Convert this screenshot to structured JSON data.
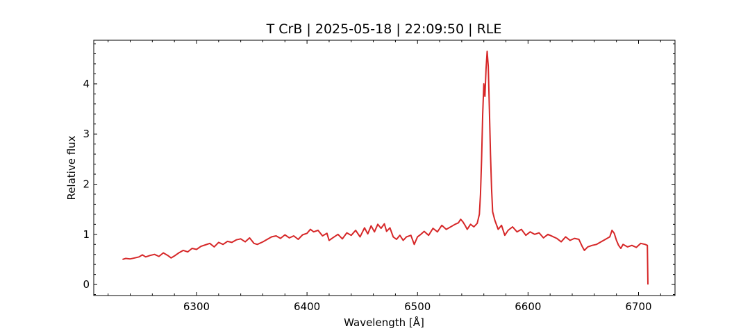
{
  "chart_data": {
    "type": "line",
    "title": "T CrB | 2025-05-18 | 22:09:50 | RLE",
    "xlabel": "Wavelength [Å]",
    "ylabel": "Relative flux",
    "xlim": [
      6207,
      6733
    ],
    "ylim": [
      -0.22,
      4.87
    ],
    "xticks": [
      6300,
      6400,
      6500,
      6600,
      6700
    ],
    "yticks": [
      0,
      1,
      2,
      3,
      4
    ],
    "grid": false,
    "series": [
      {
        "color": "#d62728",
        "points": [
          [
            6233,
            0.5
          ],
          [
            6236,
            0.52
          ],
          [
            6240,
            0.51
          ],
          [
            6244,
            0.53
          ],
          [
            6248,
            0.55
          ],
          [
            6251,
            0.59
          ],
          [
            6254,
            0.55
          ],
          [
            6258,
            0.58
          ],
          [
            6262,
            0.6
          ],
          [
            6266,
            0.56
          ],
          [
            6270,
            0.63
          ],
          [
            6274,
            0.58
          ],
          [
            6277,
            0.53
          ],
          [
            6280,
            0.57
          ],
          [
            6284,
            0.63
          ],
          [
            6288,
            0.68
          ],
          [
            6292,
            0.65
          ],
          [
            6296,
            0.72
          ],
          [
            6300,
            0.7
          ],
          [
            6304,
            0.76
          ],
          [
            6308,
            0.79
          ],
          [
            6312,
            0.82
          ],
          [
            6316,
            0.75
          ],
          [
            6320,
            0.84
          ],
          [
            6324,
            0.8
          ],
          [
            6328,
            0.86
          ],
          [
            6332,
            0.84
          ],
          [
            6336,
            0.89
          ],
          [
            6340,
            0.91
          ],
          [
            6344,
            0.85
          ],
          [
            6348,
            0.93
          ],
          [
            6352,
            0.82
          ],
          [
            6355,
            0.8
          ],
          [
            6360,
            0.85
          ],
          [
            6364,
            0.9
          ],
          [
            6368,
            0.95
          ],
          [
            6372,
            0.97
          ],
          [
            6376,
            0.92
          ],
          [
            6380,
            0.99
          ],
          [
            6384,
            0.93
          ],
          [
            6388,
            0.97
          ],
          [
            6392,
            0.9
          ],
          [
            6396,
            0.99
          ],
          [
            6400,
            1.02
          ],
          [
            6403,
            1.1
          ],
          [
            6406,
            1.05
          ],
          [
            6410,
            1.08
          ],
          [
            6414,
            0.97
          ],
          [
            6418,
            1.02
          ],
          [
            6420,
            0.88
          ],
          [
            6424,
            0.94
          ],
          [
            6428,
            1.0
          ],
          [
            6432,
            0.91
          ],
          [
            6436,
            1.03
          ],
          [
            6440,
            0.98
          ],
          [
            6444,
            1.08
          ],
          [
            6448,
            0.95
          ],
          [
            6452,
            1.13
          ],
          [
            6455,
            1.01
          ],
          [
            6458,
            1.17
          ],
          [
            6461,
            1.05
          ],
          [
            6464,
            1.2
          ],
          [
            6467,
            1.12
          ],
          [
            6470,
            1.21
          ],
          [
            6472,
            1.06
          ],
          [
            6475,
            1.13
          ],
          [
            6478,
            0.95
          ],
          [
            6481,
            0.9
          ],
          [
            6484,
            0.98
          ],
          [
            6487,
            0.88
          ],
          [
            6490,
            0.95
          ],
          [
            6494,
            0.98
          ],
          [
            6497,
            0.8
          ],
          [
            6500,
            0.95
          ],
          [
            6503,
            1.0
          ],
          [
            6506,
            1.06
          ],
          [
            6510,
            0.98
          ],
          [
            6514,
            1.12
          ],
          [
            6518,
            1.05
          ],
          [
            6522,
            1.18
          ],
          [
            6526,
            1.1
          ],
          [
            6530,
            1.15
          ],
          [
            6534,
            1.2
          ],
          [
            6537,
            1.23
          ],
          [
            6539,
            1.3
          ],
          [
            6541,
            1.25
          ],
          [
            6543,
            1.18
          ],
          [
            6545,
            1.1
          ],
          [
            6548,
            1.2
          ],
          [
            6551,
            1.15
          ],
          [
            6554,
            1.22
          ],
          [
            6556,
            1.4
          ],
          [
            6557,
            1.8
          ],
          [
            6558,
            2.5
          ],
          [
            6559,
            3.4
          ],
          [
            6560,
            4.0
          ],
          [
            6561,
            3.75
          ],
          [
            6562,
            4.3
          ],
          [
            6563,
            4.65
          ],
          [
            6564,
            4.35
          ],
          [
            6565,
            3.5
          ],
          [
            6566,
            2.6
          ],
          [
            6567,
            1.9
          ],
          [
            6568,
            1.45
          ],
          [
            6570,
            1.28
          ],
          [
            6573,
            1.1
          ],
          [
            6576,
            1.18
          ],
          [
            6579,
            0.98
          ],
          [
            6582,
            1.08
          ],
          [
            6586,
            1.15
          ],
          [
            6590,
            1.05
          ],
          [
            6594,
            1.1
          ],
          [
            6598,
            0.98
          ],
          [
            6602,
            1.05
          ],
          [
            6606,
            1.0
          ],
          [
            6610,
            1.03
          ],
          [
            6614,
            0.93
          ],
          [
            6618,
            1.0
          ],
          [
            6622,
            0.96
          ],
          [
            6626,
            0.92
          ],
          [
            6630,
            0.85
          ],
          [
            6634,
            0.95
          ],
          [
            6638,
            0.88
          ],
          [
            6642,
            0.92
          ],
          [
            6646,
            0.9
          ],
          [
            6649,
            0.76
          ],
          [
            6651,
            0.68
          ],
          [
            6654,
            0.75
          ],
          [
            6658,
            0.78
          ],
          [
            6662,
            0.8
          ],
          [
            6666,
            0.85
          ],
          [
            6670,
            0.9
          ],
          [
            6674,
            0.95
          ],
          [
            6676,
            1.08
          ],
          [
            6678,
            1.02
          ],
          [
            6680,
            0.88
          ],
          [
            6682,
            0.78
          ],
          [
            6684,
            0.72
          ],
          [
            6686,
            0.8
          ],
          [
            6690,
            0.75
          ],
          [
            6694,
            0.78
          ],
          [
            6698,
            0.74
          ],
          [
            6702,
            0.82
          ],
          [
            6706,
            0.8
          ],
          [
            6708,
            0.78
          ],
          [
            6708.5,
            0.0
          ]
        ]
      }
    ]
  }
}
